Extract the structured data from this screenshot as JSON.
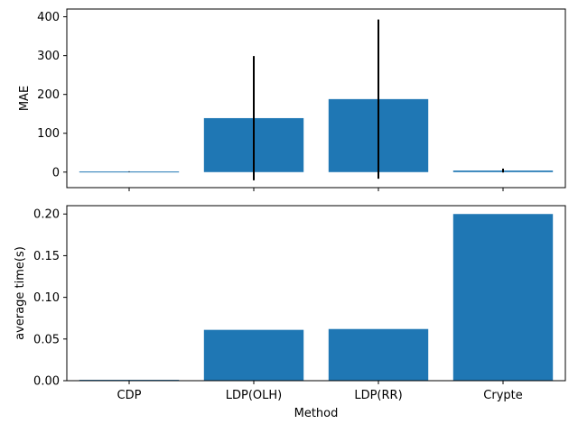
{
  "chart_data": [
    {
      "type": "bar",
      "categories": [
        "CDP",
        "LDP(OLH)",
        "LDP(RR)",
        "Crypte"
      ],
      "values": [
        1.5,
        139,
        188,
        4
      ],
      "error": [
        0.5,
        160,
        205,
        5
      ],
      "ylabel": "MAE",
      "xlabel": "",
      "ylim": [
        -40,
        420
      ],
      "yticks": [
        0,
        100,
        200,
        300,
        400
      ],
      "ytick_labels": [
        "0",
        "100",
        "200",
        "300",
        "400"
      ],
      "show_x_tick_labels": false,
      "grid": false,
      "bar_color": "#1f77b4",
      "error_color": "#000000"
    },
    {
      "type": "bar",
      "categories": [
        "CDP",
        "LDP(OLH)",
        "LDP(RR)",
        "Crypte"
      ],
      "values": [
        0.001,
        0.061,
        0.062,
        0.2
      ],
      "ylabel": "average time(s)",
      "xlabel": "Method",
      "ylim": [
        0,
        0.21
      ],
      "yticks": [
        0,
        0.05,
        0.1,
        0.15,
        0.2
      ],
      "ytick_labels": [
        "0.00",
        "0.05",
        "0.10",
        "0.15",
        "0.20"
      ],
      "show_x_tick_labels": true,
      "grid": false,
      "bar_color": "#1f77b4"
    }
  ]
}
